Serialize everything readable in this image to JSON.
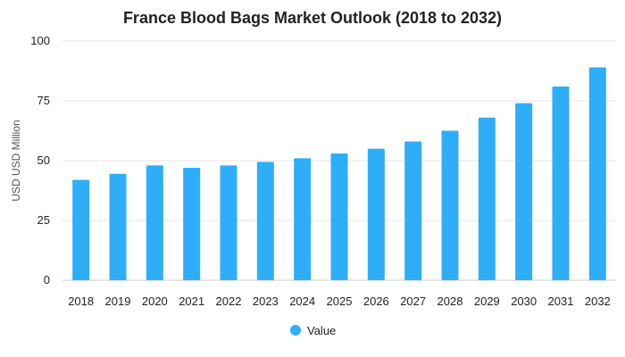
{
  "chart_data": {
    "type": "bar",
    "title": "France Blood Bags Market Outlook (2018 to 2032)",
    "xlabel": "",
    "ylabel": "USD USD Million",
    "categories": [
      "2018",
      "2019",
      "2020",
      "2021",
      "2022",
      "2023",
      "2024",
      "2025",
      "2026",
      "2027",
      "2028",
      "2029",
      "2030",
      "2031",
      "2032"
    ],
    "series": [
      {
        "name": "Value",
        "values": [
          42,
          44.5,
          48,
          47,
          48,
          49.5,
          51,
          53,
          55,
          58,
          62.5,
          68,
          74,
          81,
          89
        ],
        "color": "#2EAEF9"
      }
    ],
    "ylim": [
      0,
      100
    ],
    "yticks": [
      0,
      25,
      50,
      75,
      100
    ],
    "grid": true,
    "legend": "bottom-center"
  }
}
